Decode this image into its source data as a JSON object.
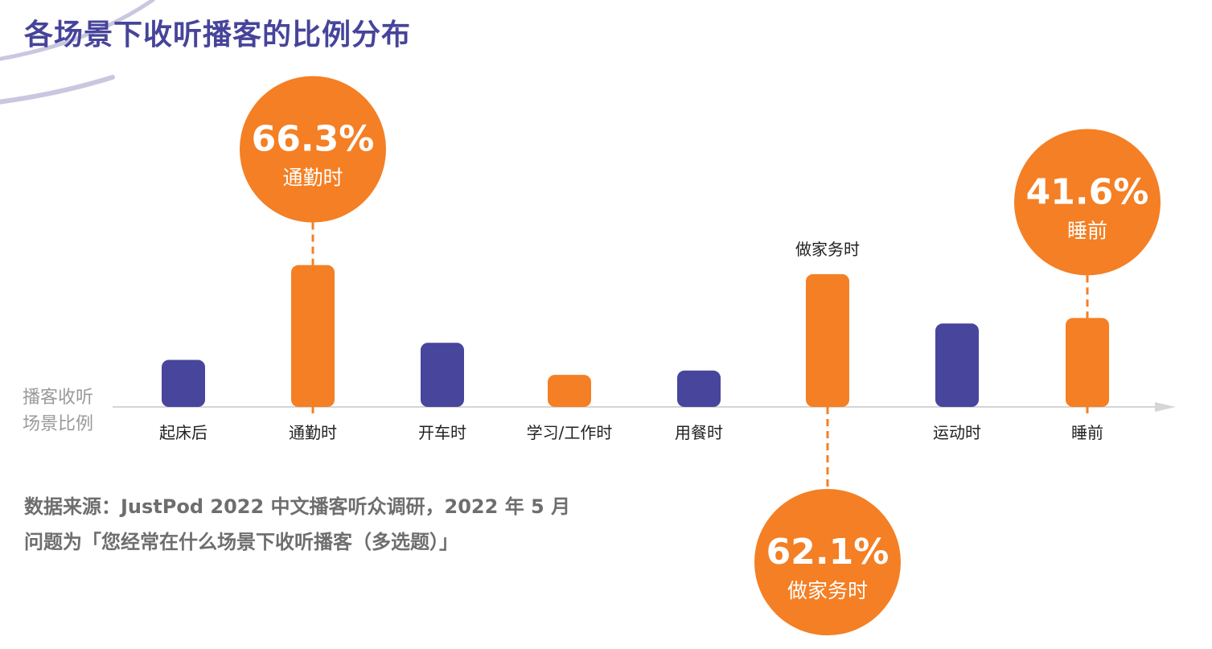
{
  "title": "各场景下收听播客的比例分布",
  "colors": {
    "title": "#46449a",
    "purple": "#47459c",
    "orange": "#f47f24",
    "axis": "#d6d6d6",
    "arc": "#c9c7e0",
    "ylabel": "#9a9a9a",
    "source": "#6e6e6e",
    "category": "#222222"
  },
  "y_axis_label_lines": [
    "播客收听",
    "场景比例"
  ],
  "source_lines": [
    "数据来源：JustPod 2022 中文播客听众调研，2022 年 5 月",
    "问题为「您经常在什么场景下收听播客（多选题）」"
  ],
  "chart_data": {
    "type": "bar",
    "title": "各场景下收听播客的比例分布",
    "xlabel": "",
    "ylabel": "播客收听场景比例",
    "categories": [
      "起床后",
      "通勤时",
      "开车时",
      "学习/工作时",
      "用餐时",
      "做家务时",
      "运动时",
      "睡前"
    ],
    "values": [
      22,
      66.3,
      30,
      15,
      17,
      62.1,
      39,
      41.6
    ],
    "value_note": "Only 66.3, 62.1 and 41.6 are printed; others estimated from bar heights",
    "highlight": [
      false,
      true,
      false,
      true,
      false,
      true,
      false,
      true
    ],
    "ylim": [
      0,
      70
    ],
    "grid": false,
    "axis_arrow": true,
    "callouts": [
      {
        "category_index": 1,
        "value_label": "66.3%",
        "name": "通勤时",
        "position": "above"
      },
      {
        "category_index": 5,
        "value_label": "62.1%",
        "name": "做家务时",
        "position": "below"
      },
      {
        "category_index": 7,
        "value_label": "41.6%",
        "name": "睡前",
        "position": "above"
      }
    ],
    "category_label_above_index": 5
  }
}
